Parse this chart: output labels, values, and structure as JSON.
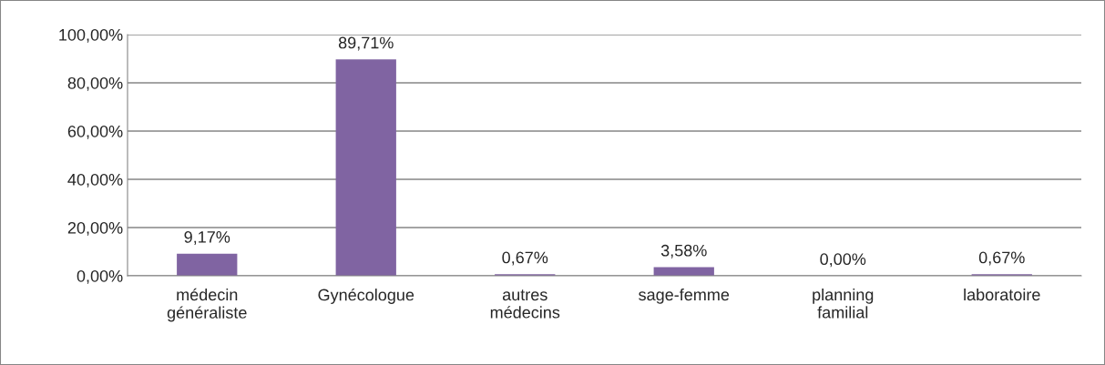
{
  "chart_data": {
    "type": "bar",
    "categories": [
      "médecin généraliste",
      "Gynécologue",
      "autres médecins",
      "sage-femme",
      "planning familial",
      "laboratoire"
    ],
    "values": [
      9.17,
      89.71,
      0.67,
      3.58,
      0.0,
      0.67
    ],
    "value_labels": [
      "9,17%",
      "89,71%",
      "0,67%",
      "3,58%",
      "0,00%",
      "0,67%"
    ],
    "color": "#8064a2",
    "ylim": [
      0,
      100
    ],
    "yticks": [
      {
        "value": 0,
        "label": "0,00%"
      },
      {
        "value": 20,
        "label": "20,00%"
      },
      {
        "value": 40,
        "label": "40,00%"
      },
      {
        "value": 60,
        "label": "60,00%"
      },
      {
        "value": 80,
        "label": "80,00%"
      },
      {
        "value": 100,
        "label": "100,00%"
      }
    ],
    "grid": "y",
    "legend": false
  }
}
